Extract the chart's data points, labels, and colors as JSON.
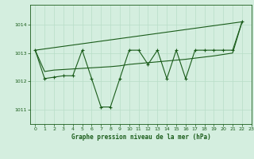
{
  "title": "Graphe pression niveau de la mer (hPa)",
  "background_color": "#d4eedf",
  "plot_bg_color": "#d4eedf",
  "grid_color": "#b8ddc8",
  "line_color": "#1a5c1a",
  "xlim": [
    -0.5,
    23
  ],
  "ylim": [
    1010.5,
    1014.7
  ],
  "yticks": [
    1011,
    1012,
    1013,
    1014
  ],
  "xticks": [
    0,
    1,
    2,
    3,
    4,
    5,
    6,
    7,
    8,
    9,
    10,
    11,
    12,
    13,
    14,
    15,
    16,
    17,
    18,
    19,
    20,
    21,
    22,
    23
  ],
  "series1": {
    "x": [
      0,
      1,
      2,
      3,
      4,
      5,
      6,
      7,
      8,
      9,
      10,
      11,
      12,
      13,
      14,
      15,
      16,
      17,
      18,
      19,
      20,
      21,
      22
    ],
    "y": [
      1013.1,
      1012.1,
      1012.15,
      1012.2,
      1012.2,
      1013.1,
      1012.1,
      1011.1,
      1011.1,
      1012.1,
      1013.1,
      1013.1,
      1012.6,
      1013.1,
      1012.1,
      1013.1,
      1012.1,
      1013.1,
      1013.1,
      1013.1,
      1013.1,
      1013.1,
      1014.1
    ]
  },
  "series2": {
    "x": [
      0,
      22
    ],
    "y": [
      1013.1,
      1014.1
    ]
  },
  "series3": {
    "x": [
      0,
      1,
      2,
      3,
      4,
      5,
      6,
      7,
      8,
      9,
      10,
      11,
      12,
      13,
      14,
      15,
      16,
      17,
      18,
      19,
      20,
      21,
      22
    ],
    "y": [
      1013.1,
      1012.35,
      1012.4,
      1012.42,
      1012.44,
      1012.46,
      1012.48,
      1012.5,
      1012.52,
      1012.55,
      1012.6,
      1012.63,
      1012.66,
      1012.69,
      1012.72,
      1012.75,
      1012.78,
      1012.82,
      1012.86,
      1012.9,
      1012.95,
      1013.0,
      1014.1
    ]
  }
}
